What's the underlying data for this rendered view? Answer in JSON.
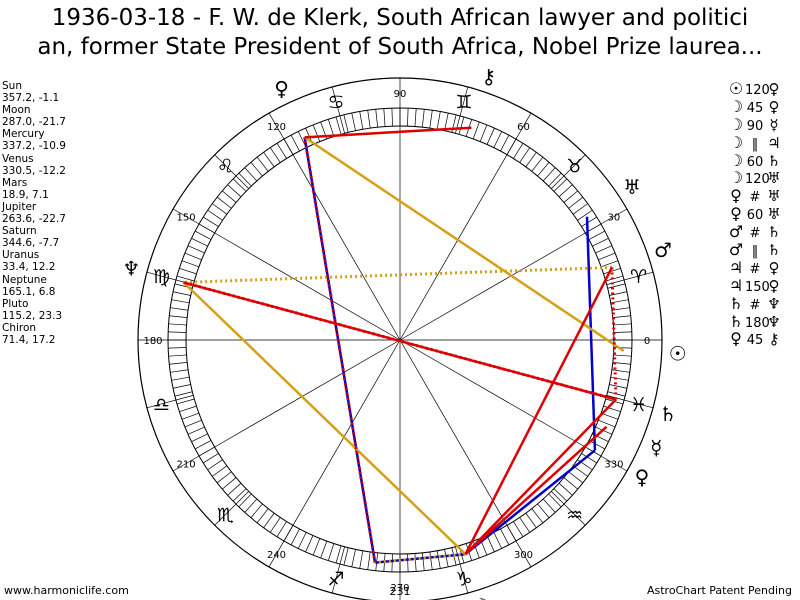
{
  "title": {
    "line1": "1936-03-18 - F. W. de Klerk, South African lawyer and politici",
    "line2": "an, former State President of South Africa, Nobel Prize laurea..."
  },
  "planets": [
    {
      "name": "Sun",
      "coords": "357.2, -1.1",
      "lon": 357.2,
      "glyph": "☉",
      "color": "#000000"
    },
    {
      "name": "Moon",
      "coords": "287.0, -21.7",
      "lon": 287.0,
      "glyph": "☽",
      "color": "#000000"
    },
    {
      "name": "Mercury",
      "coords": "337.2, -10.9",
      "lon": 337.2,
      "glyph": "☿",
      "color": "#000000"
    },
    {
      "name": "Venus",
      "coords": "330.5, -12.2",
      "lon": 330.5,
      "glyph": "♀",
      "color": "#000000"
    },
    {
      "name": "Mars",
      "coords": "18.9, 7.1",
      "lon": 18.9,
      "glyph": "♂",
      "color": "#000000"
    },
    {
      "name": "Jupiter",
      "coords": "263.6, -22.7",
      "lon": 263.6,
      "glyph": "♃",
      "color": "#000000"
    },
    {
      "name": "Saturn",
      "coords": "344.6, -7.7",
      "lon": 344.6,
      "glyph": "♄",
      "color": "#000000"
    },
    {
      "name": "Uranus",
      "coords": "33.4, 12.2",
      "lon": 33.4,
      "glyph": "♅",
      "color": "#000000"
    },
    {
      "name": "Neptune",
      "coords": "165.1, 6.8",
      "lon": 165.1,
      "glyph": "♆",
      "color": "#000000"
    },
    {
      "name": "Pluto",
      "coords": "115.2, 23.3",
      "lon": 115.2,
      "glyph": "♀",
      "color": "#000000"
    },
    {
      "name": "Chiron",
      "coords": "71.4, 17.2",
      "lon": 71.4,
      "glyph": "⚷",
      "color": "#000000"
    }
  ],
  "aspects": [
    {
      "p1": "☉",
      "aspect": "120",
      "p2": "♀"
    },
    {
      "p1": "☽",
      "aspect": "45",
      "p2": "♀"
    },
    {
      "p1": "☽",
      "aspect": "90",
      "p2": "☿"
    },
    {
      "p1": "☽",
      "aspect": "‖",
      "p2": "♃"
    },
    {
      "p1": "☽",
      "aspect": "60",
      "p2": "♄"
    },
    {
      "p1": "☽",
      "aspect": "120",
      "p2": "♅"
    },
    {
      "p1": "♀",
      "aspect": "#",
      "p2": "♅"
    },
    {
      "p1": "♀",
      "aspect": "60",
      "p2": "♅"
    },
    {
      "p1": "♂",
      "aspect": "#",
      "p2": "♄"
    },
    {
      "p1": "♂",
      "aspect": "‖",
      "p2": "♄"
    },
    {
      "p1": "♃",
      "aspect": "#",
      "p2": "♀"
    },
    {
      "p1": "♃",
      "aspect": "150",
      "p2": "♀"
    },
    {
      "p1": "♄",
      "aspect": "#",
      "p2": "♆"
    },
    {
      "p1": "♄",
      "aspect": "180",
      "p2": "♆"
    },
    {
      "p1": "♀",
      "aspect": "45",
      "p2": "⚷"
    }
  ],
  "chart_data": {
    "type": "astrological wheel",
    "degree_labels": [
      "0",
      "30",
      "60",
      "90",
      "120",
      "150",
      "180",
      "210",
      "240",
      "270",
      "300",
      "330"
    ],
    "signs": [
      {
        "glyph": "♈",
        "start": 0
      },
      {
        "glyph": "♉",
        "start": 30
      },
      {
        "glyph": "♊",
        "start": 60
      },
      {
        "glyph": "♋",
        "start": 90
      },
      {
        "glyph": "♌",
        "start": 120
      },
      {
        "glyph": "♍",
        "start": 150
      },
      {
        "glyph": "♎",
        "start": 180
      },
      {
        "glyph": "♏",
        "start": 210
      },
      {
        "glyph": "♐",
        "start": 240
      },
      {
        "glyph": "♑",
        "start": 270
      },
      {
        "glyph": "♒",
        "start": 300
      },
      {
        "glyph": "♓",
        "start": 330
      }
    ],
    "bottom_readout": "231",
    "aspect_lines": [
      {
        "a": "Jupiter",
        "b": "Pluto",
        "color": "#0000cc",
        "style": "solid"
      },
      {
        "a": "Moon",
        "b": "Jupiter",
        "color": "#0000cc",
        "style": "solid"
      },
      {
        "a": "Moon",
        "b": "Venus",
        "color": "#0000cc",
        "style": "solid"
      },
      {
        "a": "Venus",
        "b": "Uranus",
        "color": "#0000cc",
        "style": "solid"
      },
      {
        "a": "Sun",
        "b": "Pluto",
        "color": "#d4a017",
        "style": "solid"
      },
      {
        "a": "Moon",
        "b": "Neptune",
        "color": "#d4a017",
        "style": "solid"
      },
      {
        "a": "Mars",
        "b": "Neptune",
        "color": "#d4a017",
        "style": "dotted"
      },
      {
        "a": "Moon",
        "b": "Jupiter",
        "color": "#d4a017",
        "style": "dotted"
      },
      {
        "a": "Saturn",
        "b": "Neptune",
        "color": "#dd0000",
        "style": "solid"
      },
      {
        "a": "Saturn",
        "b": "Neptune",
        "color": "#dd0000",
        "style": "dotted"
      },
      {
        "a": "Moon",
        "b": "Mars",
        "color": "#dd0000",
        "style": "solid"
      },
      {
        "a": "Moon",
        "b": "Saturn",
        "color": "#dd0000",
        "style": "solid"
      },
      {
        "a": "Moon",
        "b": "Mercury",
        "color": "#dd0000",
        "style": "solid"
      },
      {
        "a": "Mars",
        "b": "Saturn",
        "color": "#dd0000",
        "style": "dotted"
      },
      {
        "a": "Jupiter",
        "b": "Pluto",
        "color": "#dd0000",
        "style": "dotted"
      },
      {
        "a": "Pluto",
        "b": "Chiron",
        "color": "#dd0000",
        "style": "solid"
      }
    ]
  },
  "footer": {
    "left": "www.harmoniclife.com",
    "right": "AstroChart Patent Pending"
  }
}
